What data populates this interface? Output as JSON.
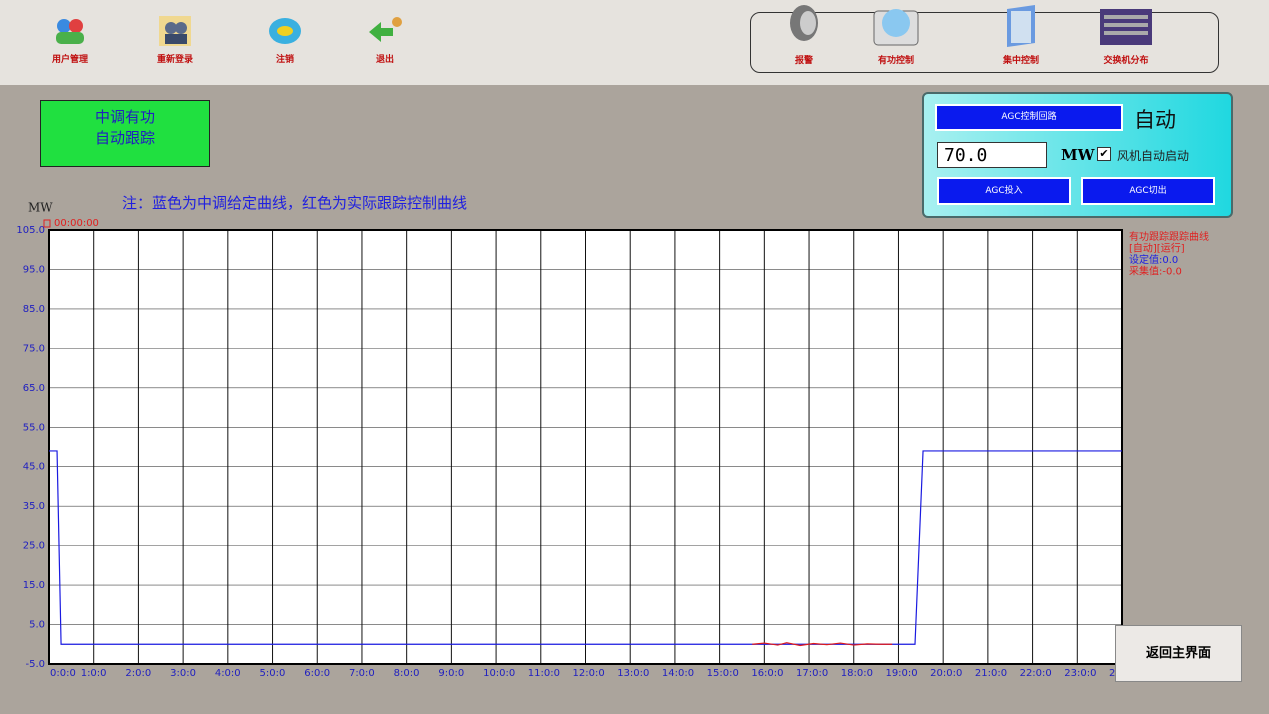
{
  "toolbar": {
    "left": [
      "用户管理",
      "重新登录",
      "注销",
      "退出"
    ],
    "right": [
      "报警",
      "有功控制",
      "集中控制",
      "交换机分布"
    ]
  },
  "status_box": {
    "lines": [
      "中调有功",
      "自动跟踪"
    ]
  },
  "note": "注：蓝色为中调给定曲线，红色为实际跟踪控制曲线",
  "agc_panel": {
    "loop_button": "AGC控制回路",
    "mode": "自动",
    "setpoint": "70.0",
    "unit": "MW",
    "checkbox_label": "风机自动启动",
    "checkbox_checked": true,
    "on_button": "AGC投入",
    "off_button": "AGC切出"
  },
  "return_button": "返回主界面",
  "chart_data": {
    "type": "line",
    "y_unit": "MW",
    "cursor_time": "00:00:00",
    "info": [
      {
        "text": "有功跟踪跟踪曲线",
        "color": "#e02020"
      },
      {
        "text": "[自动][运行]",
        "color": "#e02020"
      },
      {
        "text": "设定值:0.0",
        "color": "#2020e0"
      },
      {
        "text": "采集值:-0.0",
        "color": "#e02020"
      }
    ],
    "xlim": [
      0,
      24
    ],
    "ylim": [
      -5,
      105
    ],
    "xticks": [
      {
        "value": 0,
        "label": "0:0:0"
      },
      {
        "value": 1,
        "label": "1:0:0"
      },
      {
        "value": 2,
        "label": "2:0:0"
      },
      {
        "value": 3,
        "label": "3:0:0"
      },
      {
        "value": 4,
        "label": "4:0:0"
      },
      {
        "value": 5,
        "label": "5:0:0"
      },
      {
        "value": 6,
        "label": "6:0:0"
      },
      {
        "value": 7,
        "label": "7:0:0"
      },
      {
        "value": 8,
        "label": "8:0:0"
      },
      {
        "value": 9,
        "label": "9:0:0"
      },
      {
        "value": 10,
        "label": "10:0:0"
      },
      {
        "value": 11,
        "label": "11:0:0"
      },
      {
        "value": 12,
        "label": "12:0:0"
      },
      {
        "value": 13,
        "label": "13:0:0"
      },
      {
        "value": 14,
        "label": "14:0:0"
      },
      {
        "value": 15,
        "label": "15:0:0"
      },
      {
        "value": 16,
        "label": "16:0:0"
      },
      {
        "value": 17,
        "label": "17:0:0"
      },
      {
        "value": 18,
        "label": "18:0:0"
      },
      {
        "value": 19,
        "label": "19:0:0"
      },
      {
        "value": 20,
        "label": "20:0:0"
      },
      {
        "value": 21,
        "label": "21:0:0"
      },
      {
        "value": 22,
        "label": "22:0:0"
      },
      {
        "value": 23,
        "label": "23:0:0"
      },
      {
        "value": 24,
        "label": "2"
      }
    ],
    "yticks": [
      {
        "value": -5,
        "label": "-5.0"
      },
      {
        "value": 5,
        "label": "5.0"
      },
      {
        "value": 15,
        "label": "15.0"
      },
      {
        "value": 25,
        "label": "25.0"
      },
      {
        "value": 35,
        "label": "35.0"
      },
      {
        "value": 45,
        "label": "45.0"
      },
      {
        "value": 55,
        "label": "55.0"
      },
      {
        "value": 65,
        "label": "65.0"
      },
      {
        "value": 75,
        "label": "75.0"
      },
      {
        "value": 85,
        "label": "85.0"
      },
      {
        "value": 95,
        "label": "95.0"
      },
      {
        "value": 105,
        "label": "105.0"
      }
    ],
    "series": [
      {
        "color": "#1a1ae0",
        "x": [
          0,
          0.18,
          0.27,
          19.37,
          19.55,
          24
        ],
        "values": [
          49,
          49,
          0,
          0,
          49,
          49
        ]
      },
      {
        "color": "#e01a1a",
        "x": [
          15.73,
          16.0,
          16.3,
          16.5,
          16.8,
          17.1,
          17.4,
          17.7,
          18.0,
          18.3,
          18.6,
          18.86
        ],
        "values": [
          0,
          0.3,
          -0.2,
          0.4,
          -0.3,
          0.2,
          -0.1,
          0.3,
          -0.2,
          0.1,
          0,
          0
        ]
      }
    ]
  }
}
